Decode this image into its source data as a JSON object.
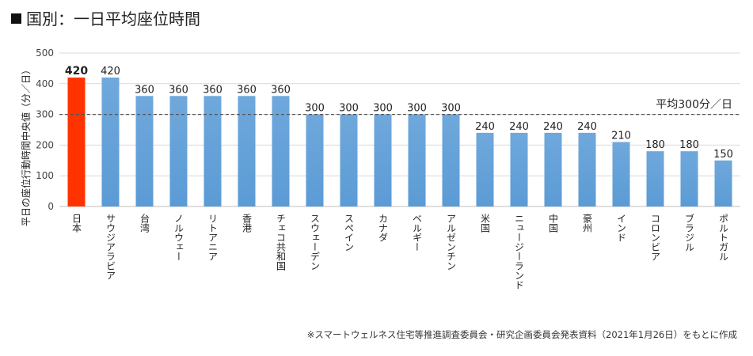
{
  "title": "国別：一日平均座位時間",
  "source": "※スマートウェルネス住宅等推進調査委員会・研究企画委員会発表資料（2021年1月26日）をもとに作成",
  "chart_data": {
    "type": "bar",
    "ylabel": "平日の座位行動時間中央値（分／日）",
    "xlabel": "",
    "ylim": [
      0,
      500
    ],
    "yticks": [
      0,
      100,
      200,
      300,
      400,
      500
    ],
    "categories": [
      "日本",
      "サウジアラビア",
      "台湾",
      "ノルウェー",
      "リトアニア",
      "香港",
      "チェコ共和国",
      "スウェーデン",
      "スペイン",
      "カナダ",
      "ベルギー",
      "アルゼンチン",
      "米国",
      "ニュージーランド",
      "中国",
      "豪州",
      "インド",
      "コロンビア",
      "ブラジル",
      "ポルトガル"
    ],
    "values": [
      420,
      420,
      360,
      360,
      360,
      360,
      360,
      300,
      300,
      300,
      300,
      300,
      240,
      240,
      240,
      240,
      210,
      180,
      180,
      150
    ],
    "data_labels": [
      "420",
      "420",
      "360",
      "360",
      "360",
      "360",
      "360",
      "300",
      "300",
      "300",
      "300",
      "300",
      "240",
      "240",
      "240",
      "240",
      "210",
      "180",
      "180",
      "150"
    ],
    "highlight_index": 0,
    "colors": {
      "bar": "#5b9bd5",
      "highlight": "#ff3300",
      "grid": "#d9d9d9",
      "ref_line": "#555555"
    },
    "reference_line": {
      "value": 300,
      "label": "平均300分／日"
    },
    "grid": true,
    "legend": "none"
  }
}
